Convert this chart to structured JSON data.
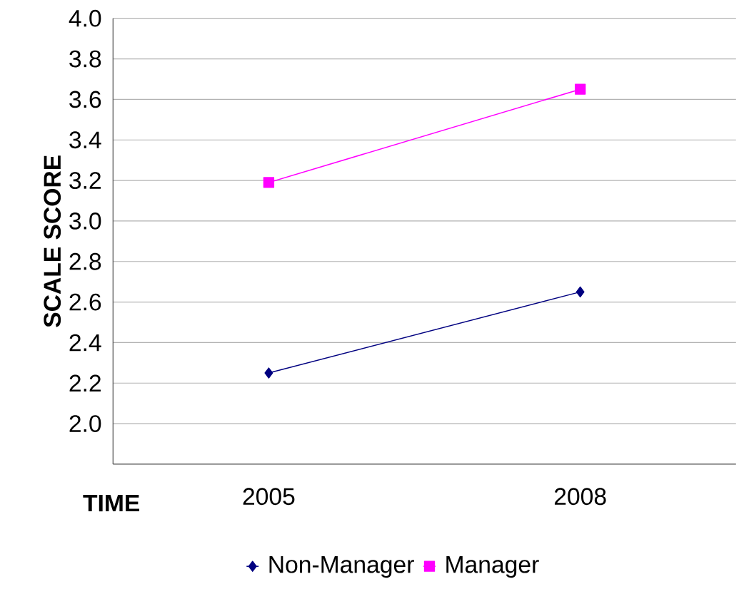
{
  "chart_data": {
    "type": "line",
    "xlabel": "TIME",
    "ylabel": "SCALE SCORE",
    "categories": [
      "2005",
      "2008"
    ],
    "series": [
      {
        "name": "Non-Manager",
        "color": "#000080",
        "marker": "diamond",
        "values": [
          2.25,
          2.65
        ]
      },
      {
        "name": "Manager",
        "color": "#ff00ff",
        "marker": "square",
        "values": [
          3.19,
          3.65
        ]
      }
    ],
    "ylim": [
      1.8,
      4.0
    ],
    "yticks": [
      {
        "value": 2.0,
        "label": "2.0"
      },
      {
        "value": 2.2,
        "label": "2.2"
      },
      {
        "value": 2.4,
        "label": "2.4"
      },
      {
        "value": 2.6,
        "label": "2.6"
      },
      {
        "value": 2.8,
        "label": "2.8"
      },
      {
        "value": 3.0,
        "label": "3.0"
      },
      {
        "value": 3.2,
        "label": "3.2"
      },
      {
        "value": 3.4,
        "label": "3.4"
      },
      {
        "value": 3.6,
        "label": "3.6"
      },
      {
        "value": 3.8,
        "label": "3.8"
      },
      {
        "value": 4.0,
        "label": "4.0"
      }
    ],
    "grid": "y",
    "legend": "bottom",
    "line_style": "solid"
  }
}
